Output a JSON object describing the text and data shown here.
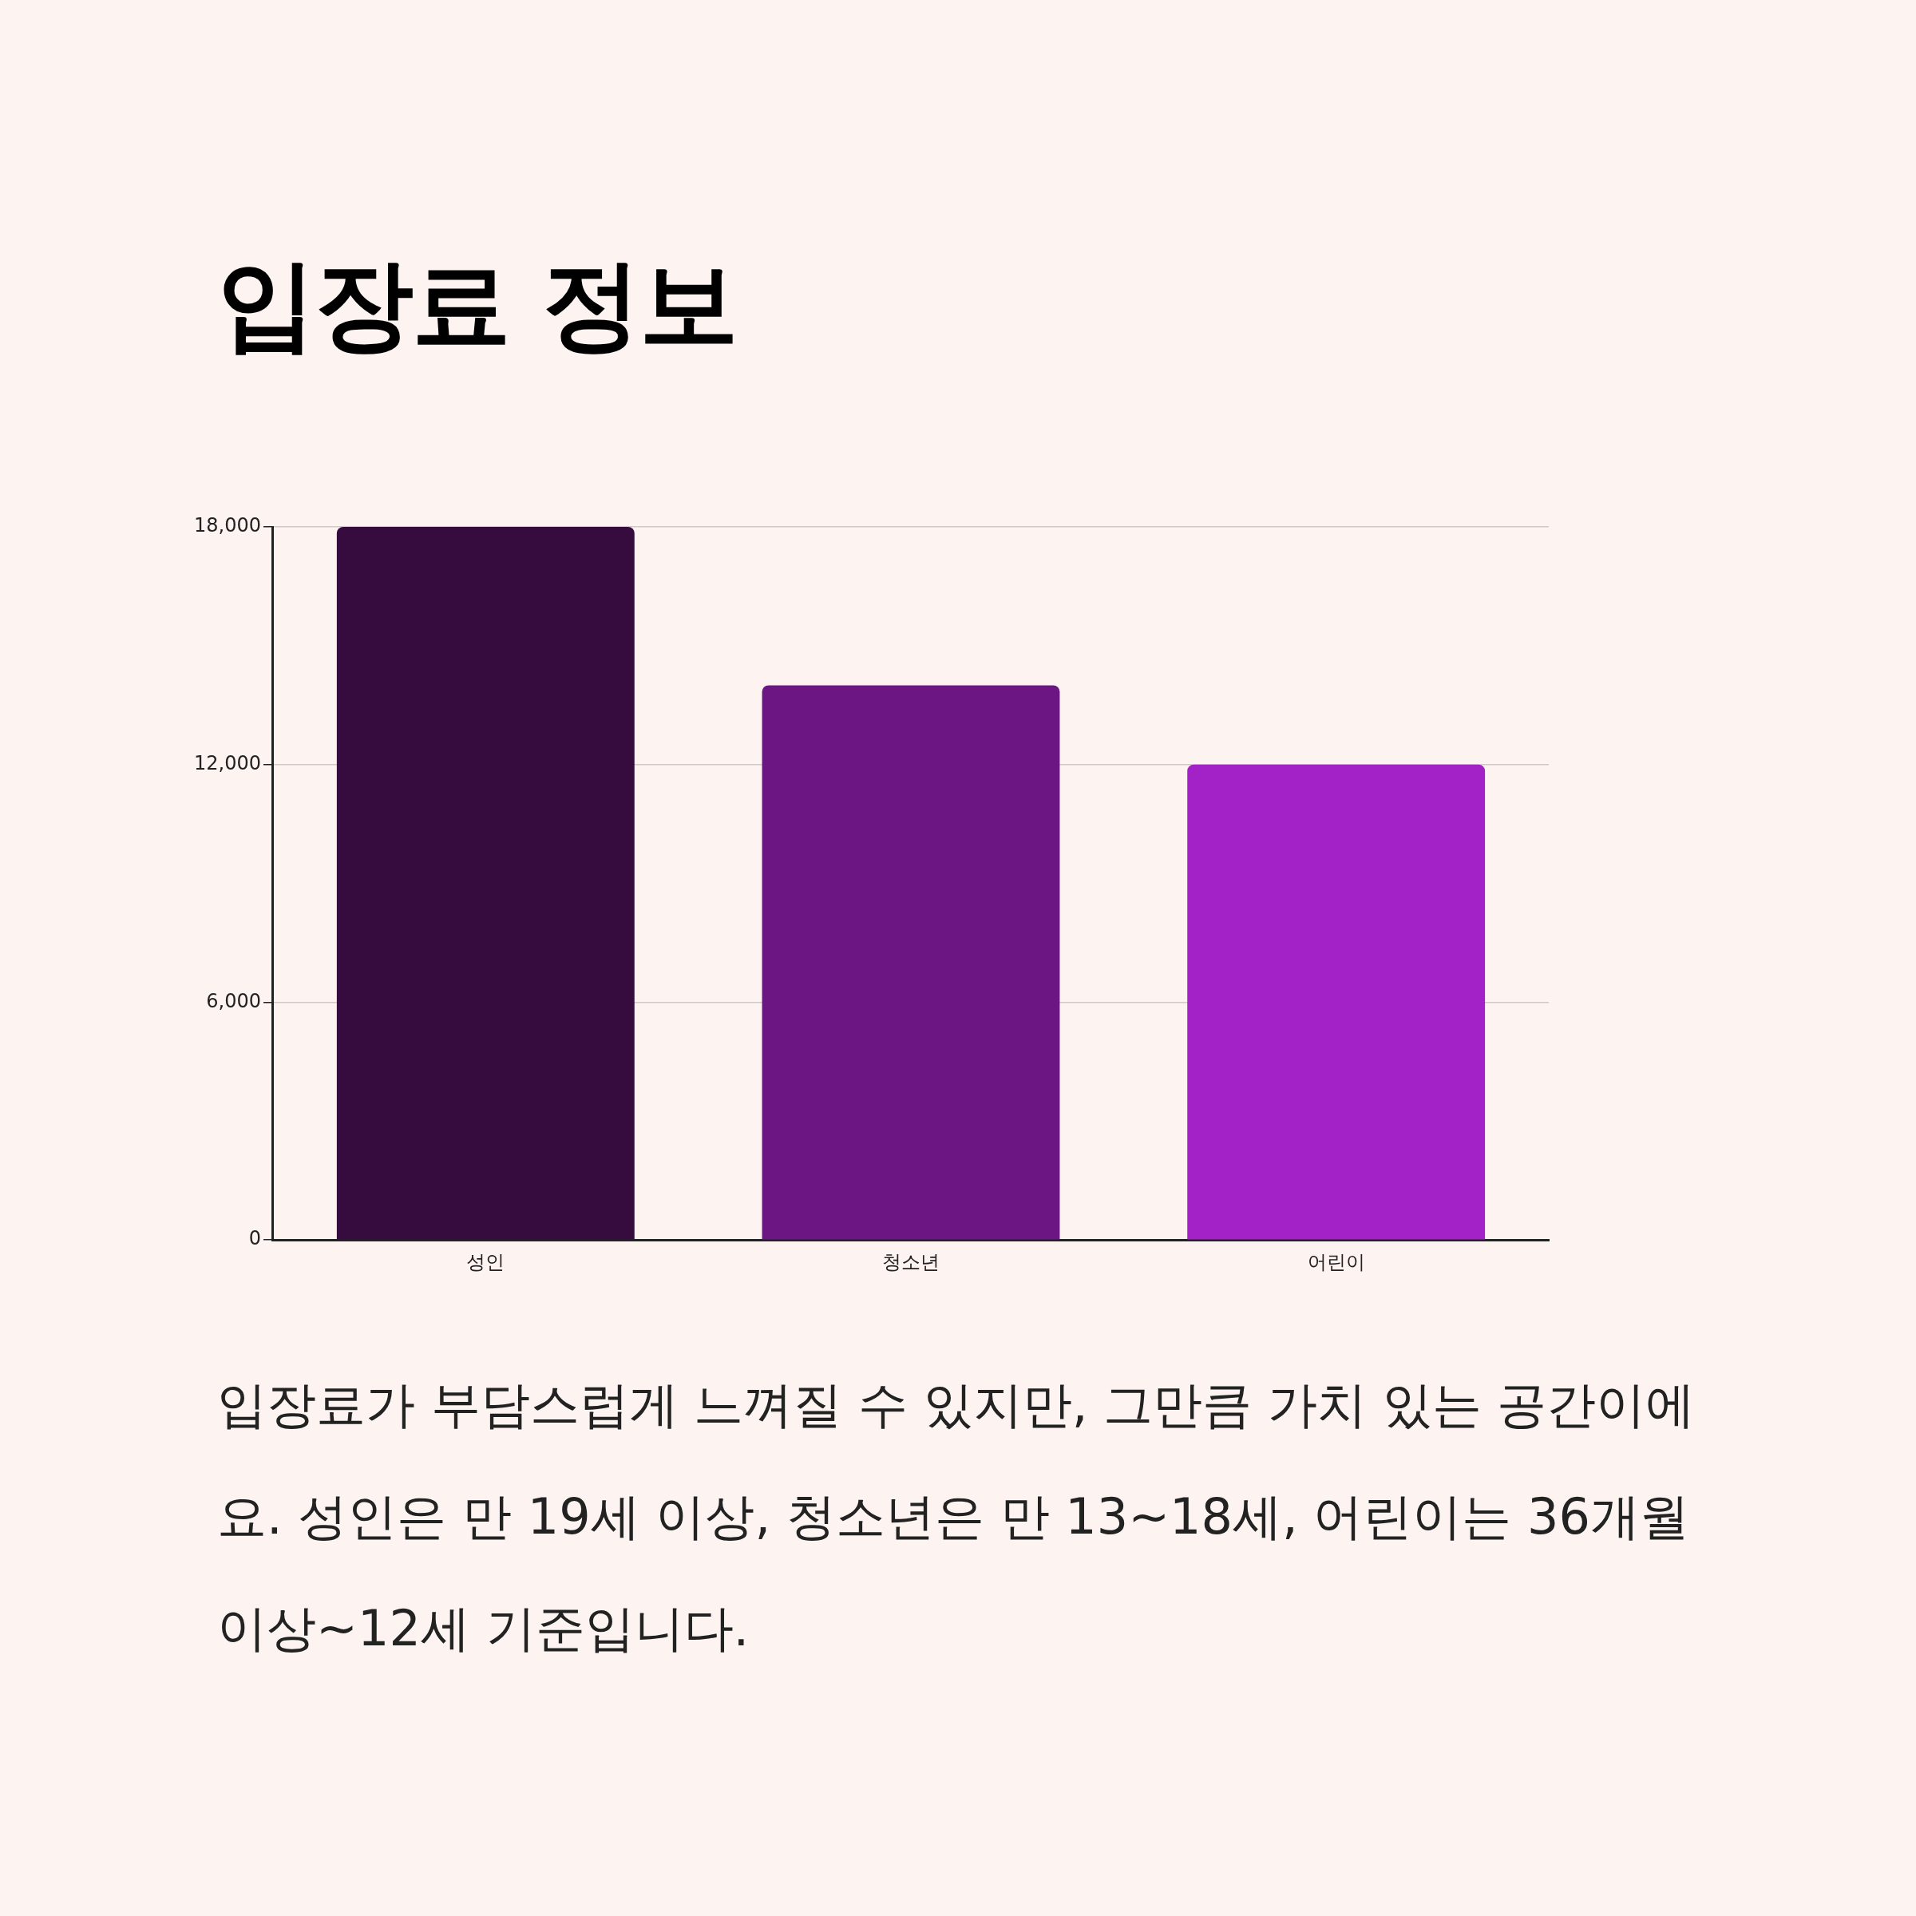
{
  "chart_data": {
    "type": "bar",
    "title": "입장료 정보",
    "categories": [
      "성인",
      "청소년",
      "어린이"
    ],
    "values": [
      18000,
      14000,
      12000
    ],
    "colors": [
      "#360b3e",
      "#6b1682",
      "#a322c8"
    ],
    "ylim": [
      0,
      18000
    ],
    "yticks": [
      0,
      {
        "value": 6000,
        "label": "6,000"
      },
      {
        "value": 12000,
        "label": "12,000"
      },
      {
        "value": 18000,
        "label": "18,000"
      }
    ],
    "grid": "y",
    "annotations": [
      "입장료가 부담스럽게 느껴질 수 있지만, 그만큼 가치 있는 공간이에요. 성인은 만 19세 이상, 청소년은 만 13~18세, 어린이는 36개월 이상~12세 기준입니다."
    ]
  }
}
